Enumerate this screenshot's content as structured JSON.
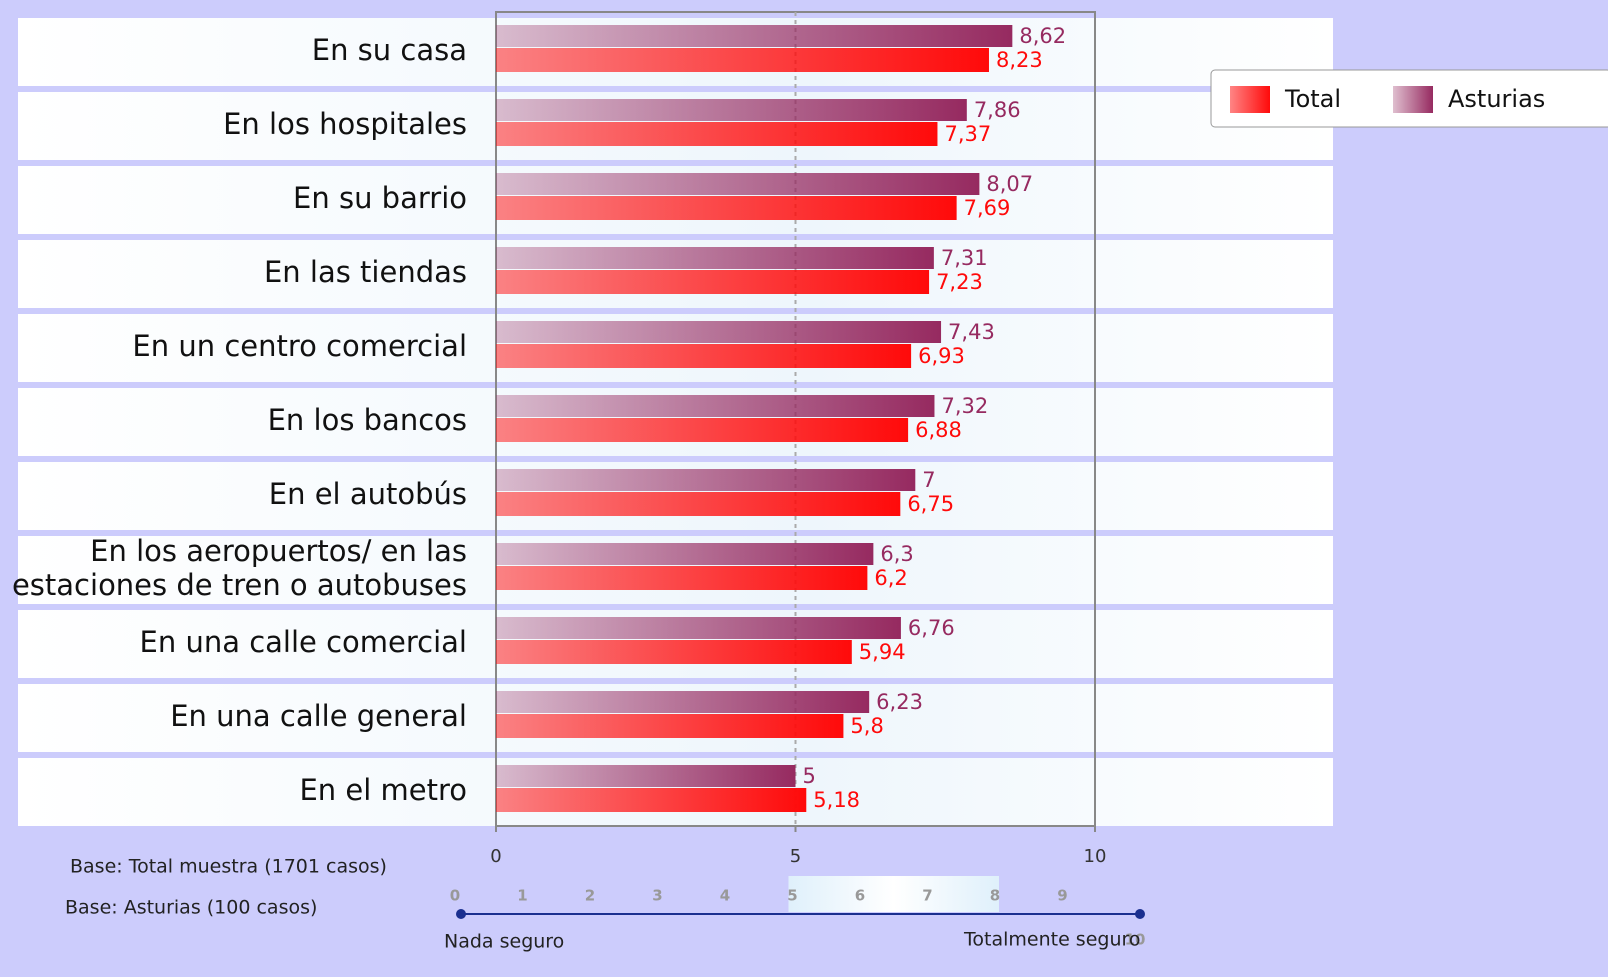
{
  "chart_data": {
    "type": "hbar",
    "categories": [
      "En su casa",
      "En los hospitales",
      "En su barrio",
      "En las tiendas",
      "En un centro comercial",
      "En los bancos",
      "En el autobús",
      "En los aeropuertos/ en las estaciones de tren o autobuses",
      "En una calle comercial",
      "En una calle general",
      "En el metro"
    ],
    "series": [
      {
        "name": "Total",
        "color": "#ff0a0a",
        "values": [
          8.23,
          7.37,
          7.69,
          7.23,
          6.93,
          6.88,
          6.75,
          6.2,
          5.94,
          5.8,
          5.18
        ],
        "value_labels": [
          "8,23",
          "7,37",
          "7,69",
          "7,23",
          "6,93",
          "6,88",
          "6,75",
          "6,2",
          "5,94",
          "5,8",
          "5,18"
        ]
      },
      {
        "name": "Asturias",
        "color": "#962a60",
        "values": [
          8.62,
          7.86,
          8.07,
          7.31,
          7.43,
          7.32,
          7,
          6.3,
          6.76,
          6.23,
          5
        ],
        "value_labels": [
          "8,62",
          "7,86",
          "8,07",
          "7,31",
          "7,43",
          "7,32",
          "7",
          "6,3",
          "6,76",
          "6,23",
          "5"
        ]
      }
    ],
    "xlim": [
      0,
      10
    ],
    "xticks": [
      0,
      5,
      10
    ],
    "grid": true,
    "legend": "top-right",
    "notes": [
      "Base: Total muestra (1701 casos)",
      "Base:  Asturias (100 casos)"
    ],
    "scale": {
      "ticks": [
        0,
        1,
        2,
        3,
        4,
        5,
        6,
        7,
        8,
        9,
        10
      ],
      "highlight": [
        5,
        8
      ],
      "left_label": "Nada seguro",
      "right_label": "Totalmente seguro"
    }
  }
}
